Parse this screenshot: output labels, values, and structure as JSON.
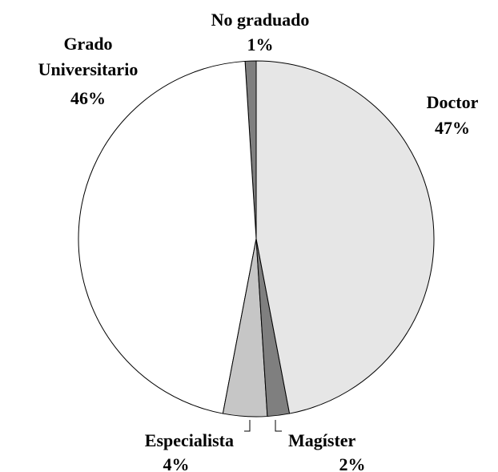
{
  "chart_data": {
    "type": "pie",
    "categories": [
      "Doctor",
      "Magíster",
      "Especialista",
      "Grado Universitario",
      "No graduado"
    ],
    "values": [
      47,
      2,
      4,
      46,
      1
    ],
    "value_labels": [
      "47%",
      "2%",
      "4%",
      "46%",
      "1%"
    ],
    "colors": [
      "#e6e6e6",
      "#7f7f7f",
      "#c6c6c6",
      "#ffffff",
      "#7f7f7f"
    ]
  }
}
